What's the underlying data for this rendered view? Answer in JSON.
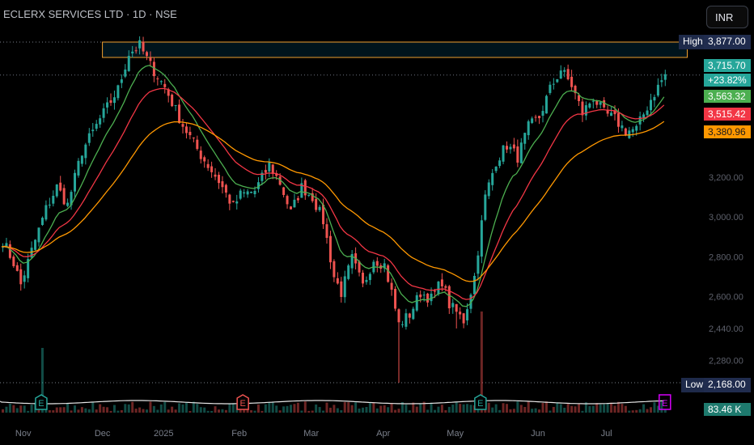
{
  "header": {
    "symbol_title": "ECLERX SERVICES LTD · 1D · NSE",
    "currency_button": "INR"
  },
  "price_scale": {
    "high_label": "High",
    "high_value": "3,877.00",
    "low_label": "Low",
    "low_value": "2,168.00",
    "last_price": "3,715.70",
    "change_pct": "+23.82%",
    "ma_fast_value": "3,563.32",
    "ma_mid_value": "3,515.42",
    "ma_slow_value": "3,380.96",
    "volume_value": "83.46 K"
  },
  "earnings_marker": "E",
  "colors": {
    "up": "#26a69a",
    "down": "#ef5350",
    "ma_fast": "#4caf50",
    "ma_mid": "#f23645",
    "ma_slow": "#ff9800",
    "high_box": "#f0a030",
    "earnings_past": "#26a69a",
    "earnings_red": "#ef5350",
    "earnings_future": "#d500f9"
  },
  "chart_data": {
    "type": "candlestick",
    "title": "ECLERX SERVICES LTD · 1D · NSE",
    "currency": "INR",
    "y_ticks": [
      2168,
      2280,
      2440,
      2600,
      2800,
      3000,
      3200
    ],
    "y_tick_labels": [
      "2,168.00",
      "2,280.00",
      "2,440.00",
      "2,600.00",
      "2,800.00",
      "3,000.00",
      "3,200.00"
    ],
    "ylim": [
      2168,
      3950
    ],
    "x_tick_labels": [
      "Nov",
      "Dec",
      "2025",
      "Feb",
      "Mar",
      "Apr",
      "May",
      "Jun",
      "Jul"
    ],
    "x_tick_index": [
      6,
      28,
      45,
      66,
      86,
      106,
      126,
      149,
      168
    ],
    "session_count": 185,
    "anchors": [
      [
        0,
        2880
      ],
      [
        3,
        2770
      ],
      [
        5,
        2660
      ],
      [
        8,
        2830
      ],
      [
        12,
        3040
      ],
      [
        15,
        3150
      ],
      [
        18,
        3060
      ],
      [
        22,
        3330
      ],
      [
        27,
        3490
      ],
      [
        32,
        3640
      ],
      [
        35,
        3820
      ],
      [
        38,
        3860
      ],
      [
        41,
        3760
      ],
      [
        45,
        3650
      ],
      [
        50,
        3460
      ],
      [
        55,
        3310
      ],
      [
        60,
        3180
      ],
      [
        64,
        3050
      ],
      [
        66,
        3110
      ],
      [
        70,
        3130
      ],
      [
        74,
        3260
      ],
      [
        77,
        3170
      ],
      [
        80,
        3020
      ],
      [
        83,
        3150
      ],
      [
        86,
        3100
      ],
      [
        89,
        2980
      ],
      [
        92,
        2700
      ],
      [
        94,
        2620
      ],
      [
        97,
        2790
      ],
      [
        100,
        2650
      ],
      [
        103,
        2790
      ],
      [
        106,
        2760
      ],
      [
        108,
        2620
      ],
      [
        110,
        2460
      ],
      [
        113,
        2510
      ],
      [
        116,
        2620
      ],
      [
        119,
        2590
      ],
      [
        122,
        2680
      ],
      [
        124,
        2560
      ],
      [
        126,
        2520
      ],
      [
        128,
        2480
      ],
      [
        131,
        2700
      ],
      [
        134,
        3100
      ],
      [
        137,
        3280
      ],
      [
        140,
        3360
      ],
      [
        143,
        3300
      ],
      [
        146,
        3450
      ],
      [
        149,
        3500
      ],
      [
        152,
        3640
      ],
      [
        155,
        3740
      ],
      [
        158,
        3660
      ],
      [
        161,
        3520
      ],
      [
        164,
        3600
      ],
      [
        167,
        3520
      ],
      [
        170,
        3490
      ],
      [
        173,
        3430
      ],
      [
        176,
        3440
      ],
      [
        180,
        3590
      ],
      [
        184,
        3715.7
      ]
    ],
    "spikes": {
      "110": 2168,
      "126": 2440
    },
    "volume": {
      "spike_indices": [
        11,
        133
      ],
      "last": "83.46 K"
    },
    "high": 3877.0,
    "low": 2168.0,
    "last": 3715.7,
    "change_pct": 23.82,
    "moving_averages": [
      {
        "value": 3563.32
      },
      {
        "value": 3515.42
      },
      {
        "value": 3380.96
      }
    ],
    "earnings_markers": [
      {
        "index": 11,
        "label": "E"
      },
      {
        "index": 67,
        "label": "E"
      },
      {
        "index": 133,
        "label": "E"
      },
      {
        "index": 184,
        "label": "E"
      }
    ],
    "grid": false,
    "legend": "none"
  }
}
